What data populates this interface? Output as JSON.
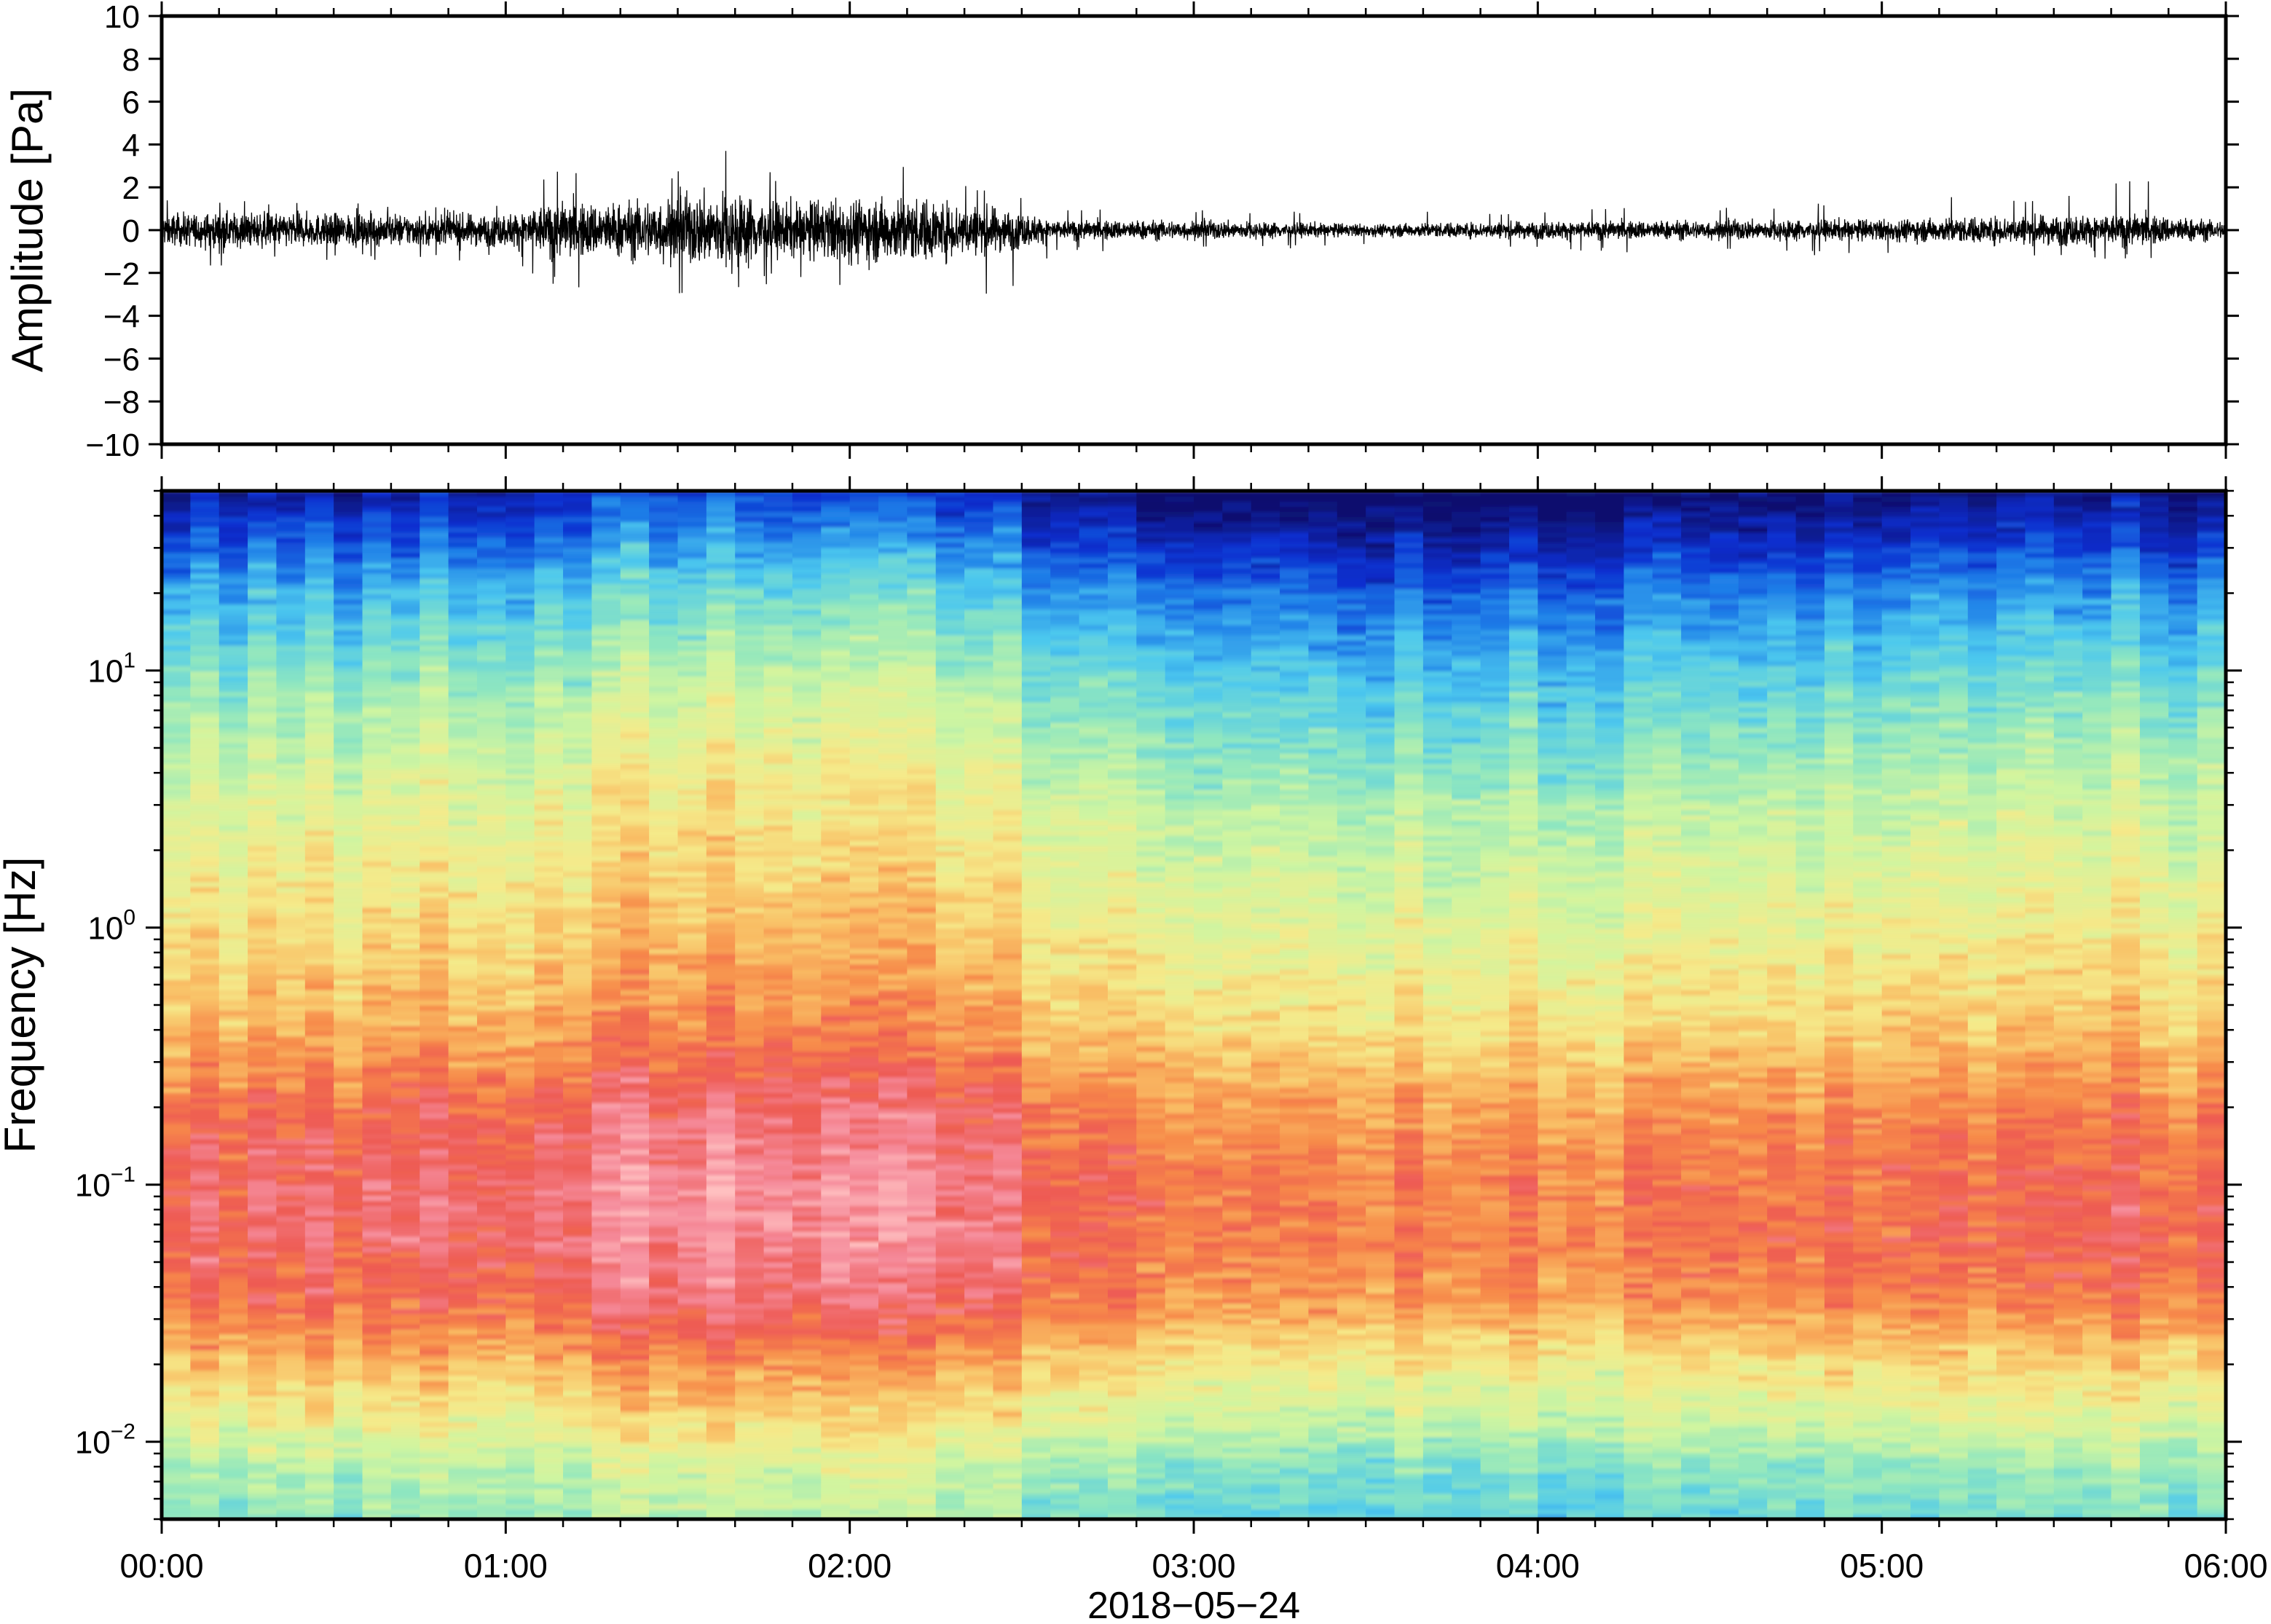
{
  "chart_data": [
    {
      "type": "line",
      "panel": "waveform",
      "ylabel": "Amplitude [Pa]",
      "ylim": [
        -10,
        10
      ],
      "yticks": [
        10,
        8,
        6,
        4,
        2,
        0,
        -2,
        -4,
        -6,
        -8,
        -10
      ],
      "ytick_labels": [
        "10",
        "8",
        "6",
        "4",
        "2",
        "0",
        "−2",
        "−4",
        "−6",
        "−8",
        "−10"
      ],
      "xlim_hours": [
        0,
        6
      ],
      "envelope": {
        "time_hours": [
          0.0,
          0.25,
          0.5,
          0.75,
          1.0,
          1.15,
          1.3,
          1.5,
          1.65,
          1.8,
          2.0,
          2.2,
          2.45,
          2.6,
          3.0,
          3.5,
          4.0,
          4.5,
          5.0,
          5.5,
          5.75,
          6.0
        ],
        "half_range_pa": [
          0.9,
          1.0,
          0.9,
          0.9,
          0.9,
          1.6,
          1.5,
          1.9,
          2.2,
          1.5,
          1.8,
          1.8,
          1.2,
          0.55,
          0.55,
          0.35,
          0.5,
          0.55,
          0.6,
          0.85,
          0.9,
          0.5
        ],
        "peak_max_pa": [
          1.5,
          1.5,
          1.3,
          1.2,
          1.4,
          3.0,
          2.6,
          3.2,
          4.8,
          2.4,
          3.0,
          3.0,
          2.2,
          1.0,
          1.1,
          0.8,
          1.0,
          1.2,
          1.4,
          1.8,
          2.6,
          1.0
        ],
        "peak_min_pa": [
          -1.8,
          -1.6,
          -1.5,
          -1.4,
          -1.5,
          -2.8,
          -2.6,
          -3.8,
          -3.5,
          -2.3,
          -3.3,
          -3.4,
          -3.8,
          -1.0,
          -1.0,
          -0.8,
          -1.0,
          -1.1,
          -1.3,
          -1.5,
          -1.4,
          -0.8
        ]
      }
    },
    {
      "type": "heatmap",
      "panel": "spectrogram",
      "ylabel": "Frequency [Hz]",
      "yscale": "log",
      "ylim": [
        0.005,
        50
      ],
      "yticks": [
        0.01,
        0.1,
        1,
        10
      ],
      "ytick_labels": [
        {
          "base": "10",
          "exp": "−2"
        },
        {
          "base": "10",
          "exp": "−1"
        },
        {
          "base": "10",
          "exp": "0"
        },
        {
          "base": "10",
          "exp": "1"
        }
      ],
      "colormap": [
        "#08106e",
        "#0a2fd0",
        "#1f7fe8",
        "#4cc8ee",
        "#8ee6c0",
        "#d0f5a0",
        "#f5ea8a",
        "#f9c066",
        "#f78a4a",
        "#ee5a52",
        "#f58a9a",
        "#ffc0c0"
      ],
      "color_anchor_power_db": [
        -140,
        -130,
        -122,
        -114,
        -106,
        -98,
        -90,
        -84,
        -78,
        -72,
        -66,
        -60
      ],
      "profile_frequency_hz": [
        0.005,
        0.008,
        0.011,
        0.02,
        0.035,
        0.06,
        0.1,
        0.2,
        0.4,
        1.0,
        3.0,
        8.0,
        20.0,
        50.0
      ],
      "profile_power_db": [
        -107,
        -103,
        -96,
        -86,
        -76,
        -72,
        -72,
        -76,
        -84,
        -90,
        -97,
        -106,
        -118,
        -137
      ],
      "time_level_hours": [
        0.0,
        0.5,
        1.0,
        1.3,
        1.6,
        2.0,
        2.2,
        2.45,
        2.5,
        3.0,
        3.5,
        4.0,
        4.5,
        5.0,
        5.5,
        6.0
      ],
      "time_level_offset_db": [
        0,
        1,
        2,
        6,
        8,
        7,
        7,
        5,
        -2,
        -3,
        -5,
        -4,
        -3,
        -2,
        0,
        -1
      ]
    }
  ],
  "xaxis": {
    "xlim_hours": [
      0,
      6
    ],
    "tick_labels": [
      "00:00",
      "01:00",
      "02:00",
      "03:00",
      "04:00",
      "05:00",
      "06:00"
    ],
    "label": "2018−05−24"
  }
}
